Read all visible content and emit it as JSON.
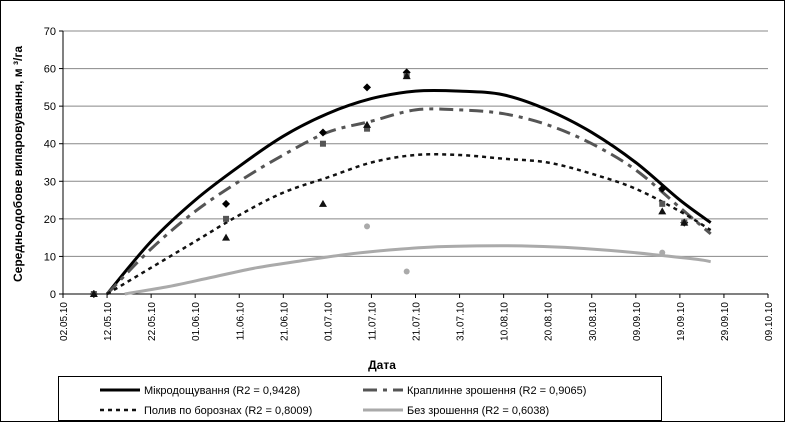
{
  "chart_data": {
    "type": "scatter",
    "title": "",
    "xlabel": "Дата",
    "ylabel": "Середньодобове випаровування, м ³/га",
    "ylim": [
      0,
      70
    ],
    "xlim": [
      "2010-05-02",
      "2010-10-09"
    ],
    "yticks": [
      "0",
      "10",
      "20",
      "30",
      "40",
      "50",
      "60",
      "70"
    ],
    "xticks": [
      "02.05.10",
      "12.05.10",
      "22.05.10",
      "01.06.10",
      "11.06.10",
      "21.06.10",
      "01.07.10",
      "11.07.10",
      "21.07.10",
      "31.07.10",
      "10.08.10",
      "20.08.10",
      "30.08.10",
      "09.09.10",
      "19.09.10",
      "29.09.10",
      "09.10.10"
    ],
    "grid": "horizontal",
    "legend_position": "bottom",
    "series": [
      {
        "name": "Мікродощування (R2 = 0,9428)",
        "color": "#000000",
        "marker": "diamond",
        "line": "solid",
        "points": [
          [
            "2010-05-09",
            0
          ],
          [
            "2010-06-08",
            24
          ],
          [
            "2010-06-30",
            43
          ],
          [
            "2010-07-10",
            55
          ],
          [
            "2010-07-19",
            59
          ],
          [
            "2010-09-15",
            28
          ],
          [
            "2010-09-20",
            19
          ]
        ],
        "trend": [
          [
            "2010-05-12",
            0
          ],
          [
            "2010-05-22",
            14
          ],
          [
            "2010-06-01",
            25
          ],
          [
            "2010-06-11",
            34
          ],
          [
            "2010-06-21",
            42
          ],
          [
            "2010-07-01",
            48
          ],
          [
            "2010-07-11",
            52
          ],
          [
            "2010-07-21",
            54
          ],
          [
            "2010-07-31",
            54
          ],
          [
            "2010-08-10",
            53
          ],
          [
            "2010-08-20",
            49
          ],
          [
            "2010-08-30",
            43
          ],
          [
            "2010-09-09",
            35
          ],
          [
            "2010-09-19",
            25
          ],
          [
            "2010-09-26",
            19
          ]
        ]
      },
      {
        "name": "Краплинне зрошення (R2 = 0,9065)",
        "color": "#555555",
        "marker": "square",
        "line": "longdash",
        "points": [
          [
            "2010-05-09",
            0
          ],
          [
            "2010-06-08",
            20
          ],
          [
            "2010-06-30",
            40
          ],
          [
            "2010-07-10",
            44
          ],
          [
            "2010-07-19",
            58
          ],
          [
            "2010-09-15",
            24
          ],
          [
            "2010-09-20",
            19
          ]
        ],
        "trend": [
          [
            "2010-05-12",
            0
          ],
          [
            "2010-05-22",
            12
          ],
          [
            "2010-06-01",
            22
          ],
          [
            "2010-06-11",
            30
          ],
          [
            "2010-06-21",
            37
          ],
          [
            "2010-07-01",
            43
          ],
          [
            "2010-07-11",
            46
          ],
          [
            "2010-07-21",
            49
          ],
          [
            "2010-07-31",
            49
          ],
          [
            "2010-08-10",
            48
          ],
          [
            "2010-08-20",
            45
          ],
          [
            "2010-08-30",
            40
          ],
          [
            "2010-09-09",
            33
          ],
          [
            "2010-09-19",
            23
          ],
          [
            "2010-09-26",
            16
          ]
        ]
      },
      {
        "name": "Полив по борознах (R2 = 0,8009)",
        "color": "#111111",
        "marker": "triangle",
        "line": "shortdash",
        "points": [
          [
            "2010-05-09",
            0
          ],
          [
            "2010-06-08",
            15
          ],
          [
            "2010-06-30",
            24
          ],
          [
            "2010-07-10",
            45
          ],
          [
            "2010-07-19",
            58
          ],
          [
            "2010-09-15",
            22
          ],
          [
            "2010-09-20",
            19
          ]
        ],
        "trend": [
          [
            "2010-05-12",
            0
          ],
          [
            "2010-05-22",
            7
          ],
          [
            "2010-06-01",
            14
          ],
          [
            "2010-06-11",
            21
          ],
          [
            "2010-06-21",
            27
          ],
          [
            "2010-07-01",
            31
          ],
          [
            "2010-07-11",
            35
          ],
          [
            "2010-07-21",
            37
          ],
          [
            "2010-07-31",
            37
          ],
          [
            "2010-08-10",
            36
          ],
          [
            "2010-08-20",
            35
          ],
          [
            "2010-08-30",
            32
          ],
          [
            "2010-09-09",
            28
          ],
          [
            "2010-09-19",
            22
          ],
          [
            "2010-09-26",
            17
          ]
        ]
      },
      {
        "name": "Без зрошення (R2 = 0,6038)",
        "color": "#aaaaaa",
        "marker": "circle",
        "line": "solid",
        "points": [
          [
            "2010-07-10",
            18
          ],
          [
            "2010-07-19",
            6
          ],
          [
            "2010-09-15",
            11
          ]
        ],
        "trend": [
          [
            "2010-05-16",
            0
          ],
          [
            "2010-05-26",
            2
          ],
          [
            "2010-06-05",
            4.5
          ],
          [
            "2010-06-15",
            7
          ],
          [
            "2010-06-25",
            8.8
          ],
          [
            "2010-07-05",
            10.5
          ],
          [
            "2010-07-15",
            11.7
          ],
          [
            "2010-07-25",
            12.5
          ],
          [
            "2010-08-04",
            12.8
          ],
          [
            "2010-08-14",
            12.8
          ],
          [
            "2010-08-24",
            12.4
          ],
          [
            "2010-09-03",
            11.6
          ],
          [
            "2010-09-13",
            10.5
          ],
          [
            "2010-09-23",
            9.2
          ],
          [
            "2010-09-26",
            8.6
          ]
        ]
      }
    ]
  }
}
